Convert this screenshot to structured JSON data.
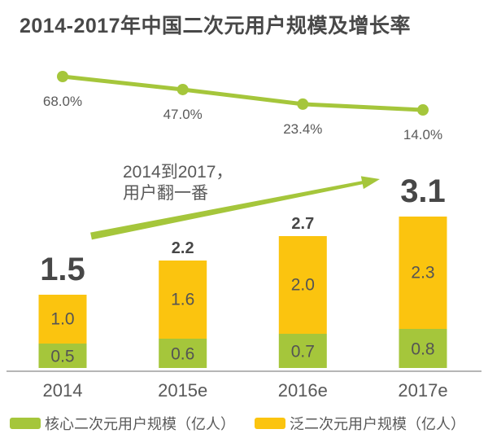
{
  "title": "2014-2017年中国二次元用户规模及增长率",
  "colors": {
    "green": "#a5c63b",
    "yellow": "#fbc40f",
    "axis_line": "#9e9e9e",
    "dark_text": "#474747",
    "gray_text": "#595959"
  },
  "annotation": {
    "line1": "2014到2017，",
    "line2": "用户翻一番"
  },
  "legend": [
    {
      "label": "核心二次元用户规模（亿人）",
      "color": "#a5c63b"
    },
    {
      "label": "泛二次元用户规模（亿人）",
      "color": "#fbc40f"
    }
  ],
  "chart_data": {
    "type": "bar",
    "subtype": "stacked-bars-with-growth-line",
    "title": "2014-2017年中国二次元用户规模及增长率",
    "categories": [
      "2014",
      "2015e",
      "2016e",
      "2017e"
    ],
    "series": [
      {
        "name": "核心二次元用户规模（亿人）",
        "type": "bar",
        "stack": "users",
        "color": "#a5c63b",
        "values": [
          0.5,
          0.6,
          0.7,
          0.8
        ]
      },
      {
        "name": "泛二次元用户规模（亿人）",
        "type": "bar",
        "stack": "users",
        "color": "#fbc40f",
        "values": [
          1.0,
          1.6,
          2.0,
          2.3
        ]
      },
      {
        "name": "增长率",
        "type": "line",
        "color": "#a5c63b",
        "values": [
          68.0,
          47.0,
          23.4,
          14.0
        ],
        "labels": [
          "68.0%",
          "47.0%",
          "23.4%",
          "14.0%"
        ]
      }
    ],
    "totals": [
      1.5,
      2.2,
      2.7,
      3.1
    ],
    "emphasized_totals": [
      0,
      3
    ],
    "annotation": "2014到2017，用户翻一番",
    "xlabel": "",
    "ylabel": "",
    "unit": "亿人",
    "grid": false,
    "y_axis_visible": false,
    "legend_position": "bottom"
  }
}
